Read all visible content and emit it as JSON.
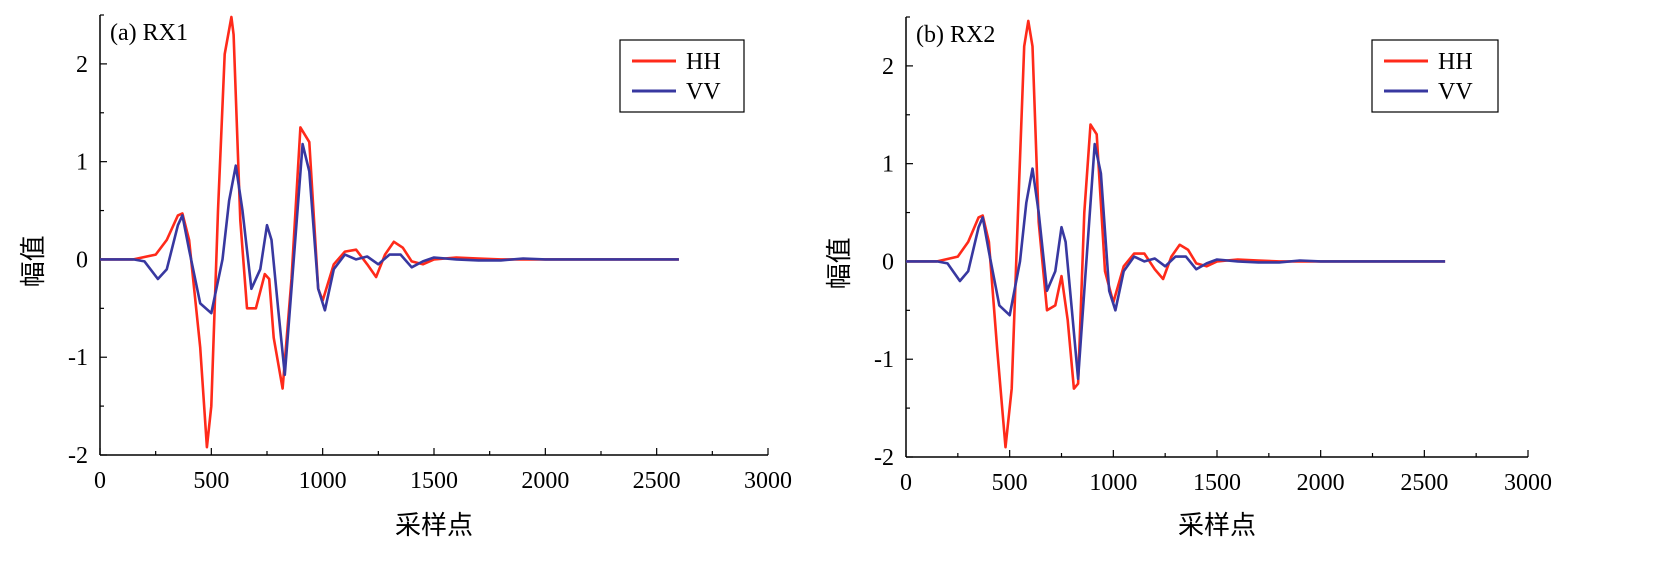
{
  "chart_data": [
    {
      "type": "line",
      "title": "(a) RX1",
      "xlabel": "采样点",
      "ylabel": "幅值",
      "xlim": [
        0,
        3000
      ],
      "ylim": [
        -2,
        2.5
      ],
      "xticks": [
        "0",
        "500",
        "1000",
        "1500",
        "2000",
        "2500",
        "3000"
      ],
      "yticks": [
        "-2",
        "-1",
        "0",
        "1",
        "2"
      ],
      "legend_position": "top-right",
      "grid": false,
      "series": [
        {
          "name": "HH",
          "color": "#ff2a1a",
          "x": [
            0,
            150,
            250,
            300,
            350,
            370,
            400,
            450,
            480,
            500,
            530,
            560,
            590,
            600,
            630,
            660,
            700,
            740,
            760,
            780,
            820,
            860,
            900,
            940,
            980,
            1000,
            1050,
            1100,
            1150,
            1200,
            1240,
            1280,
            1320,
            1360,
            1400,
            1450,
            1500,
            1600,
            1700,
            1800,
            2000,
            2200,
            2400,
            2600
          ],
          "y": [
            0,
            0,
            0.05,
            0.2,
            0.45,
            0.47,
            0.2,
            -0.9,
            -1.92,
            -1.5,
            0.5,
            2.1,
            2.48,
            2.3,
            0.4,
            -0.5,
            -0.5,
            -0.15,
            -0.2,
            -0.8,
            -1.32,
            -0.2,
            1.35,
            1.2,
            -0.3,
            -0.42,
            -0.05,
            0.08,
            0.1,
            -0.05,
            -0.18,
            0.05,
            0.18,
            0.12,
            -0.02,
            -0.05,
            0.0,
            0.02,
            0.01,
            0.0,
            0.0,
            0.0,
            0.0,
            0.0
          ]
        },
        {
          "name": "VV",
          "color": "#3838a0",
          "x": [
            0,
            150,
            200,
            260,
            300,
            350,
            370,
            400,
            450,
            500,
            550,
            580,
            610,
            640,
            680,
            720,
            750,
            770,
            800,
            830,
            860,
            910,
            940,
            980,
            1010,
            1050,
            1100,
            1150,
            1200,
            1250,
            1300,
            1350,
            1400,
            1450,
            1500,
            1600,
            1700,
            1800,
            1900,
            2000,
            2200,
            2400,
            2600
          ],
          "y": [
            0,
            0,
            -0.02,
            -0.2,
            -0.1,
            0.35,
            0.45,
            0.1,
            -0.45,
            -0.55,
            0.0,
            0.6,
            0.96,
            0.5,
            -0.3,
            -0.1,
            0.35,
            0.2,
            -0.5,
            -1.18,
            -0.3,
            1.18,
            0.9,
            -0.3,
            -0.52,
            -0.1,
            0.05,
            0.0,
            0.03,
            -0.05,
            0.05,
            0.05,
            -0.08,
            -0.02,
            0.02,
            0.0,
            -0.01,
            -0.01,
            0.01,
            0.0,
            0.0,
            0.0,
            0.0
          ]
        }
      ]
    },
    {
      "type": "line",
      "title": "(b) RX2",
      "xlabel": "采样点",
      "ylabel": "幅值",
      "xlim": [
        0,
        3000
      ],
      "ylim": [
        -2,
        2.5
      ],
      "xticks": [
        "0",
        "500",
        "1000",
        "1500",
        "2000",
        "2500",
        "3000"
      ],
      "yticks": [
        "-2",
        "-1",
        "0",
        "1",
        "2"
      ],
      "legend_position": "top-right",
      "grid": false,
      "series": [
        {
          "name": "HH",
          "color": "#ff2a1a",
          "x": [
            0,
            150,
            250,
            300,
            350,
            370,
            400,
            440,
            480,
            510,
            540,
            570,
            590,
            610,
            640,
            680,
            720,
            750,
            780,
            810,
            830,
            860,
            890,
            920,
            960,
            1000,
            1050,
            1100,
            1150,
            1200,
            1240,
            1280,
            1320,
            1360,
            1400,
            1450,
            1500,
            1600,
            1700,
            1800,
            2000,
            2200,
            2400,
            2600
          ],
          "y": [
            0,
            0,
            0.05,
            0.2,
            0.45,
            0.47,
            0.2,
            -0.9,
            -1.9,
            -1.3,
            0.5,
            2.2,
            2.46,
            2.2,
            0.4,
            -0.5,
            -0.45,
            -0.15,
            -0.6,
            -1.3,
            -1.25,
            0.5,
            1.4,
            1.3,
            -0.1,
            -0.42,
            -0.05,
            0.08,
            0.08,
            -0.08,
            -0.18,
            0.05,
            0.17,
            0.12,
            -0.02,
            -0.05,
            0.0,
            0.02,
            0.01,
            0.0,
            0.0,
            0.0,
            0.0,
            0.0
          ]
        },
        {
          "name": "VV",
          "color": "#3838a0",
          "x": [
            0,
            150,
            200,
            260,
            300,
            350,
            370,
            400,
            450,
            500,
            550,
            580,
            610,
            640,
            680,
            720,
            750,
            770,
            800,
            830,
            860,
            910,
            940,
            980,
            1010,
            1050,
            1100,
            1150,
            1200,
            1250,
            1300,
            1350,
            1400,
            1450,
            1500,
            1600,
            1700,
            1800,
            1900,
            2000,
            2200,
            2400,
            2600
          ],
          "y": [
            0,
            0,
            -0.02,
            -0.2,
            -0.1,
            0.35,
            0.45,
            0.1,
            -0.45,
            -0.55,
            0.0,
            0.6,
            0.95,
            0.5,
            -0.3,
            -0.1,
            0.35,
            0.2,
            -0.5,
            -1.2,
            -0.3,
            1.2,
            0.9,
            -0.3,
            -0.5,
            -0.1,
            0.05,
            0.0,
            0.03,
            -0.05,
            0.05,
            0.05,
            -0.08,
            -0.02,
            0.02,
            0.0,
            -0.01,
            -0.01,
            0.01,
            0.0,
            0.0,
            0.0,
            0.0
          ]
        }
      ]
    }
  ]
}
